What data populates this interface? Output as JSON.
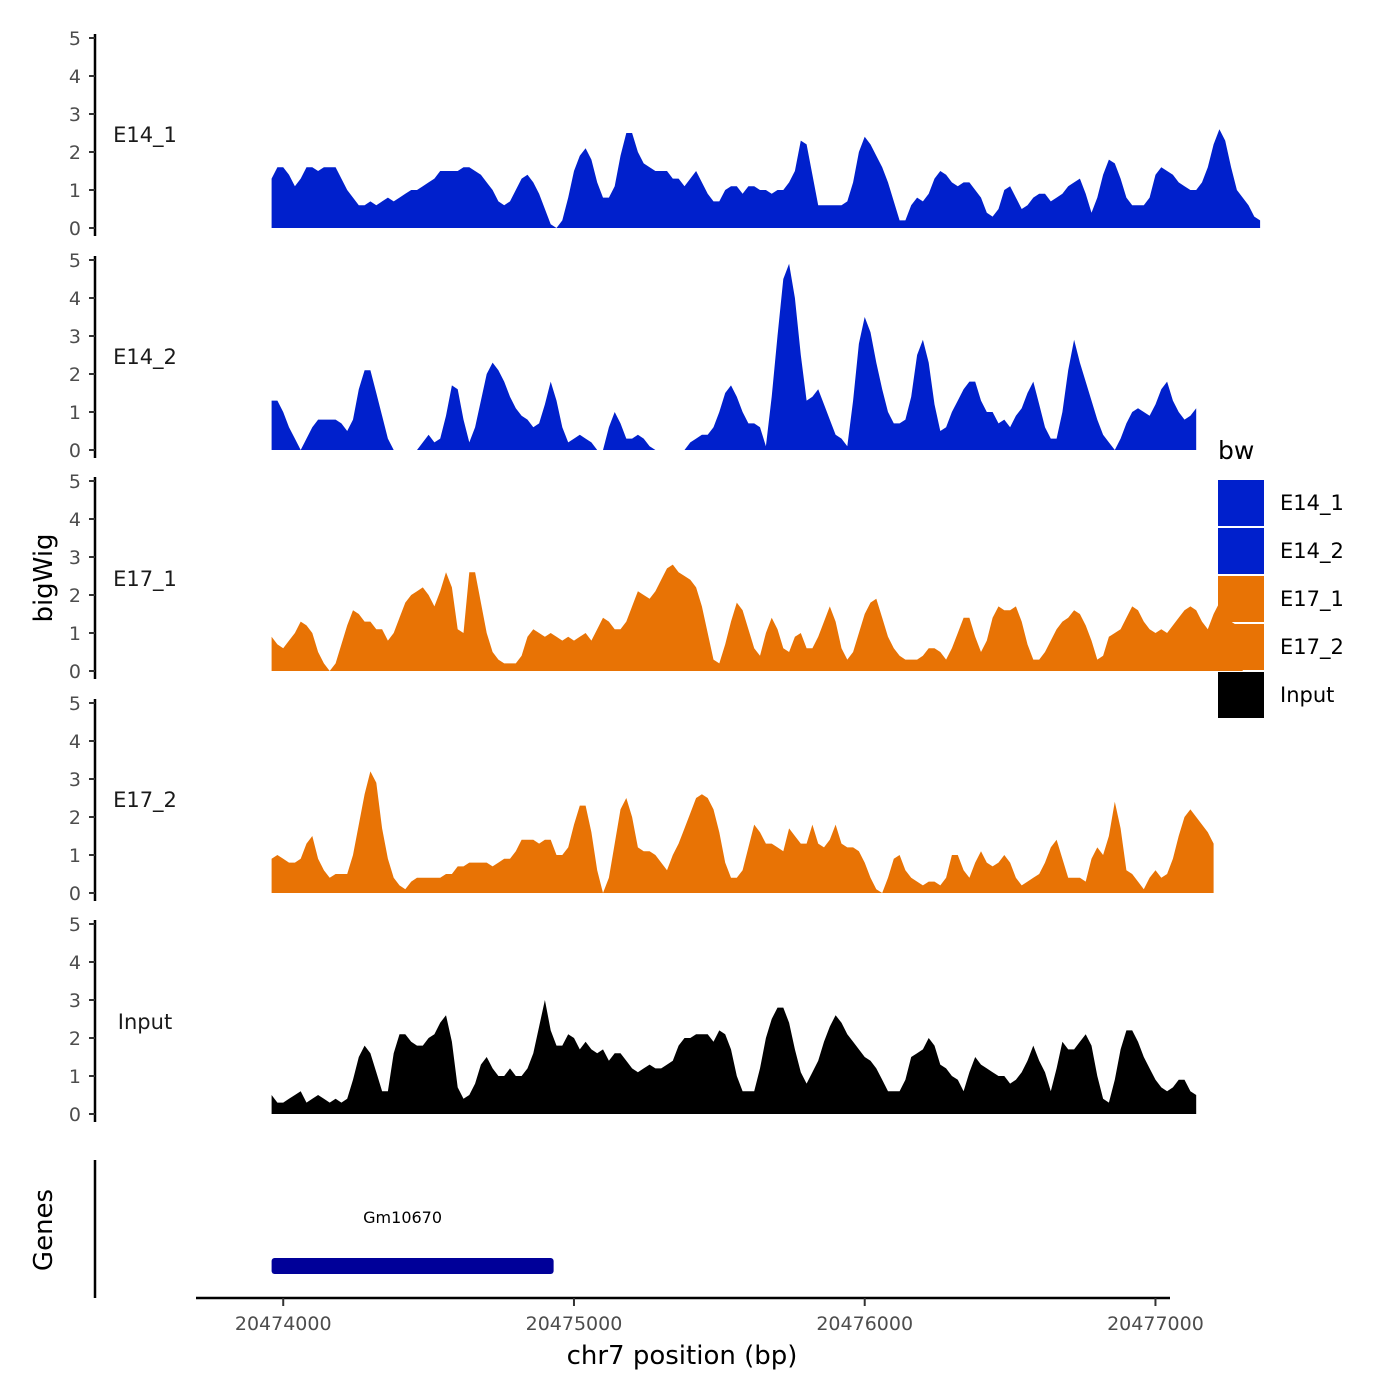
{
  "chart_data": {
    "type": "area",
    "ylabel": "bigWig",
    "xlabel": "chr7 position (bp)",
    "xlim": [
      20473700,
      20477050
    ],
    "x_ticks": [
      20474000,
      20475000,
      20476000,
      20477000
    ],
    "x_tick_labels": [
      "20474000",
      "20475000",
      "20476000",
      "20477000"
    ],
    "ylim": [
      0,
      5
    ],
    "y_ticks": [
      0,
      1,
      2,
      3,
      4,
      5
    ],
    "y_tick_labels": [
      "0",
      "1",
      "2",
      "3",
      "4",
      "5"
    ],
    "x_start": 20473960,
    "x_step": 20,
    "tracks": [
      {
        "name": "E14_1",
        "color": "#0020CC",
        "values": [
          1.3,
          1.6,
          1.6,
          1.4,
          1.1,
          1.3,
          1.6,
          1.6,
          1.5,
          1.6,
          1.6,
          1.6,
          1.3,
          1.0,
          0.8,
          0.6,
          0.6,
          0.7,
          0.6,
          0.7,
          0.8,
          0.7,
          0.8,
          0.9,
          1.0,
          1.0,
          1.1,
          1.2,
          1.3,
          1.5,
          1.5,
          1.5,
          1.5,
          1.6,
          1.6,
          1.5,
          1.4,
          1.2,
          1.0,
          0.7,
          0.6,
          0.7,
          1.0,
          1.3,
          1.4,
          1.2,
          0.9,
          0.5,
          0.1,
          0.0,
          0.2,
          0.8,
          1.5,
          1.9,
          2.1,
          1.8,
          1.2,
          0.8,
          0.8,
          1.1,
          1.9,
          2.5,
          2.5,
          2.0,
          1.7,
          1.6,
          1.5,
          1.5,
          1.5,
          1.3,
          1.3,
          1.1,
          1.3,
          1.5,
          1.2,
          0.9,
          0.7,
          0.7,
          1.0,
          1.1,
          1.1,
          0.9,
          1.1,
          1.1,
          1.0,
          1.0,
          0.9,
          1.0,
          1.0,
          1.2,
          1.5,
          2.3,
          2.2,
          1.4,
          0.6,
          0.6,
          0.6,
          0.6,
          0.6,
          0.7,
          1.2,
          2.0,
          2.4,
          2.2,
          1.9,
          1.6,
          1.2,
          0.7,
          0.2,
          0.2,
          0.6,
          0.8,
          0.7,
          0.9,
          1.3,
          1.5,
          1.4,
          1.2,
          1.1,
          1.2,
          1.2,
          1.0,
          0.8,
          0.4,
          0.3,
          0.5,
          1.0,
          1.1,
          0.8,
          0.5,
          0.6,
          0.8,
          0.9,
          0.9,
          0.7,
          0.8,
          0.9,
          1.1,
          1.2,
          1.3,
          0.9,
          0.4,
          0.8,
          1.4,
          1.8,
          1.7,
          1.3,
          0.8,
          0.6,
          0.6,
          0.6,
          0.8,
          1.4,
          1.6,
          1.5,
          1.4,
          1.2,
          1.1,
          1.0,
          1.0,
          1.2,
          1.6,
          2.2,
          2.6,
          2.3,
          1.6,
          1.0,
          0.8,
          0.6,
          0.3,
          0.2
        ],
        "ticks": [
          "0",
          "1",
          "2",
          "3",
          "4",
          "5"
        ],
        "label": "E14_1"
      },
      {
        "name": "E14_2",
        "color": "#0020CC",
        "values": [
          1.3,
          1.3,
          1.0,
          0.6,
          0.3,
          0.0,
          0.3,
          0.6,
          0.8,
          0.8,
          0.8,
          0.8,
          0.7,
          0.5,
          0.8,
          1.6,
          2.1,
          2.1,
          1.5,
          0.9,
          0.3,
          0.0,
          0.0,
          0.0,
          0.0,
          0.0,
          0.2,
          0.4,
          0.2,
          0.3,
          0.9,
          1.7,
          1.6,
          0.8,
          0.2,
          0.6,
          1.3,
          2.0,
          2.3,
          2.1,
          1.8,
          1.4,
          1.1,
          0.9,
          0.8,
          0.6,
          0.7,
          1.2,
          1.8,
          1.3,
          0.6,
          0.2,
          0.3,
          0.4,
          0.3,
          0.2,
          0.0,
          0.0,
          0.6,
          1.0,
          0.7,
          0.3,
          0.3,
          0.4,
          0.3,
          0.1,
          0.0,
          0.0,
          0.0,
          0.0,
          0.0,
          0.0,
          0.2,
          0.3,
          0.4,
          0.4,
          0.6,
          1.0,
          1.5,
          1.7,
          1.4,
          1.0,
          0.7,
          0.7,
          0.6,
          0.1,
          1.4,
          3.0,
          4.5,
          4.9,
          4.0,
          2.5,
          1.3,
          1.4,
          1.6,
          1.2,
          0.8,
          0.4,
          0.3,
          0.1,
          1.3,
          2.8,
          3.5,
          3.1,
          2.3,
          1.6,
          1.0,
          0.7,
          0.7,
          0.8,
          1.4,
          2.5,
          2.9,
          2.3,
          1.2,
          0.5,
          0.6,
          1.0,
          1.3,
          1.6,
          1.8,
          1.8,
          1.3,
          1.0,
          1.0,
          0.7,
          0.8,
          0.6,
          0.9,
          1.1,
          1.5,
          1.8,
          1.2,
          0.6,
          0.3,
          0.3,
          1.0,
          2.1,
          2.9,
          2.3,
          1.8,
          1.3,
          0.8,
          0.4,
          0.2,
          0.0,
          0.3,
          0.7,
          1.0,
          1.1,
          1.0,
          0.9,
          1.2,
          1.6,
          1.8,
          1.3,
          1.0,
          0.8,
          0.9,
          1.1
        ],
        "ticks": [
          "0",
          "1",
          "2",
          "3",
          "4",
          "5"
        ],
        "label": "E14_2"
      },
      {
        "name": "E17_1",
        "color": "#E87305",
        "values": [
          0.9,
          0.7,
          0.6,
          0.8,
          1.0,
          1.3,
          1.2,
          1.0,
          0.5,
          0.2,
          0.0,
          0.2,
          0.7,
          1.2,
          1.6,
          1.5,
          1.3,
          1.3,
          1.1,
          1.1,
          0.8,
          1.0,
          1.4,
          1.8,
          2.0,
          2.1,
          2.2,
          2.0,
          1.7,
          2.1,
          2.6,
          2.2,
          1.1,
          1.0,
          2.6,
          2.6,
          1.8,
          1.0,
          0.5,
          0.3,
          0.2,
          0.2,
          0.2,
          0.4,
          0.9,
          1.1,
          1.0,
          0.9,
          1.0,
          0.9,
          0.8,
          0.9,
          0.8,
          0.9,
          1.0,
          0.8,
          1.1,
          1.4,
          1.3,
          1.1,
          1.1,
          1.3,
          1.7,
          2.1,
          2.0,
          1.9,
          2.1,
          2.4,
          2.7,
          2.8,
          2.6,
          2.5,
          2.4,
          2.2,
          1.7,
          1.0,
          0.3,
          0.2,
          0.7,
          1.3,
          1.8,
          1.6,
          1.1,
          0.6,
          0.4,
          1.0,
          1.4,
          1.1,
          0.6,
          0.5,
          0.9,
          1.0,
          0.6,
          0.6,
          0.9,
          1.3,
          1.7,
          1.3,
          0.6,
          0.3,
          0.5,
          1.0,
          1.5,
          1.8,
          1.9,
          1.4,
          0.9,
          0.6,
          0.4,
          0.3,
          0.3,
          0.3,
          0.4,
          0.6,
          0.6,
          0.5,
          0.3,
          0.6,
          1.0,
          1.4,
          1.4,
          0.9,
          0.5,
          0.8,
          1.4,
          1.7,
          1.6,
          1.6,
          1.7,
          1.3,
          0.7,
          0.3,
          0.3,
          0.5,
          0.8,
          1.1,
          1.3,
          1.4,
          1.6,
          1.5,
          1.2,
          0.8,
          0.3,
          0.4,
          0.9,
          1.0,
          1.1,
          1.4,
          1.7,
          1.6,
          1.3,
          1.1,
          1.0,
          1.1,
          1.0,
          1.2,
          1.4,
          1.6,
          1.7,
          1.6,
          1.3,
          1.1,
          1.5,
          1.8,
          1.7,
          1.3,
          1.2,
          1.0
        ],
        "ticks": [
          "0",
          "1",
          "2",
          "3",
          "4",
          "5"
        ],
        "label": "E17_1"
      },
      {
        "name": "E17_2",
        "color": "#E87305",
        "values": [
          0.9,
          1.0,
          0.9,
          0.8,
          0.8,
          0.9,
          1.3,
          1.5,
          0.9,
          0.6,
          0.4,
          0.5,
          0.5,
          0.5,
          1.0,
          1.8,
          2.6,
          3.2,
          2.9,
          1.7,
          0.9,
          0.4,
          0.2,
          0.1,
          0.3,
          0.4,
          0.4,
          0.4,
          0.4,
          0.4,
          0.5,
          0.5,
          0.7,
          0.7,
          0.8,
          0.8,
          0.8,
          0.8,
          0.7,
          0.8,
          0.9,
          0.9,
          1.1,
          1.4,
          1.4,
          1.4,
          1.3,
          1.4,
          1.4,
          1.0,
          1.0,
          1.2,
          1.8,
          2.3,
          2.3,
          1.6,
          0.6,
          0.0,
          0.4,
          1.3,
          2.2,
          2.5,
          2.0,
          1.2,
          1.1,
          1.1,
          1.0,
          0.8,
          0.6,
          1.0,
          1.3,
          1.7,
          2.1,
          2.5,
          2.6,
          2.5,
          2.2,
          1.6,
          0.8,
          0.4,
          0.4,
          0.6,
          1.2,
          1.8,
          1.6,
          1.3,
          1.3,
          1.2,
          1.1,
          1.7,
          1.5,
          1.3,
          1.3,
          1.8,
          1.3,
          1.2,
          1.4,
          1.8,
          1.3,
          1.2,
          1.2,
          1.1,
          0.8,
          0.4,
          0.1,
          0.0,
          0.4,
          0.9,
          1.0,
          0.6,
          0.4,
          0.3,
          0.2,
          0.3,
          0.3,
          0.2,
          0.4,
          1.0,
          1.0,
          0.6,
          0.4,
          0.8,
          1.1,
          0.8,
          0.7,
          0.8,
          1.0,
          0.8,
          0.4,
          0.2,
          0.3,
          0.4,
          0.5,
          0.8,
          1.2,
          1.4,
          0.9,
          0.4,
          0.4,
          0.4,
          0.3,
          0.9,
          1.2,
          1.0,
          1.5,
          2.4,
          1.7,
          0.6,
          0.5,
          0.3,
          0.1,
          0.4,
          0.6,
          0.4,
          0.5,
          0.9,
          1.5,
          2.0,
          2.2,
          2.0,
          1.8,
          1.6,
          1.3
        ],
        "ticks": [
          "0",
          "1",
          "2",
          "3",
          "4",
          "5"
        ],
        "label": "E17_2"
      },
      {
        "name": "Input",
        "color": "#000000",
        "values": [
          0.5,
          0.3,
          0.3,
          0.4,
          0.5,
          0.6,
          0.3,
          0.4,
          0.5,
          0.4,
          0.3,
          0.4,
          0.3,
          0.4,
          0.9,
          1.5,
          1.8,
          1.6,
          1.1,
          0.6,
          0.6,
          1.6,
          2.1,
          2.1,
          1.9,
          1.8,
          1.8,
          2.0,
          2.1,
          2.4,
          2.6,
          1.9,
          0.7,
          0.4,
          0.5,
          0.8,
          1.3,
          1.5,
          1.2,
          1.0,
          1.0,
          1.2,
          1.0,
          1.0,
          1.2,
          1.6,
          2.3,
          3.0,
          2.2,
          1.8,
          1.8,
          2.1,
          2.0,
          1.7,
          1.9,
          1.7,
          1.6,
          1.7,
          1.4,
          1.6,
          1.6,
          1.4,
          1.2,
          1.1,
          1.2,
          1.3,
          1.2,
          1.2,
          1.3,
          1.4,
          1.8,
          2.0,
          2.0,
          2.1,
          2.1,
          2.1,
          1.9,
          2.2,
          2.1,
          1.7,
          1.0,
          0.6,
          0.6,
          0.6,
          1.2,
          2.0,
          2.5,
          2.8,
          2.8,
          2.4,
          1.7,
          1.1,
          0.8,
          1.1,
          1.4,
          1.9,
          2.3,
          2.6,
          2.4,
          2.1,
          1.9,
          1.7,
          1.5,
          1.4,
          1.2,
          0.9,
          0.6,
          0.6,
          0.6,
          0.9,
          1.5,
          1.6,
          1.7,
          2.0,
          1.8,
          1.3,
          1.2,
          1.0,
          0.9,
          0.6,
          1.1,
          1.5,
          1.3,
          1.2,
          1.1,
          1.0,
          1.0,
          0.8,
          0.9,
          1.1,
          1.4,
          1.8,
          1.4,
          1.1,
          0.6,
          1.2,
          1.9,
          1.7,
          1.7,
          1.9,
          2.1,
          1.8,
          1.0,
          0.4,
          0.3,
          0.9,
          1.7,
          2.2,
          2.2,
          1.9,
          1.5,
          1.2,
          0.9,
          0.7,
          0.6,
          0.7,
          0.9,
          0.9,
          0.6,
          0.5
        ],
        "ticks": [
          "0",
          "1",
          "2",
          "3",
          "4",
          "5"
        ],
        "label": "Input"
      }
    ],
    "legend": {
      "title": "bw",
      "position": "right",
      "entries": [
        {
          "label": "E14_1",
          "color": "#0020CC"
        },
        {
          "label": "E14_2",
          "color": "#0020CC"
        },
        {
          "label": "E17_1",
          "color": "#E87305"
        },
        {
          "label": "E17_2",
          "color": "#E87305"
        },
        {
          "label": "Input",
          "color": "#000000"
        }
      ]
    },
    "genes_panel": {
      "ylabel": "Genes",
      "genes": [
        {
          "name": "Gm10670",
          "start": 20473960,
          "end": 20474930,
          "color": "#000099"
        }
      ]
    }
  }
}
